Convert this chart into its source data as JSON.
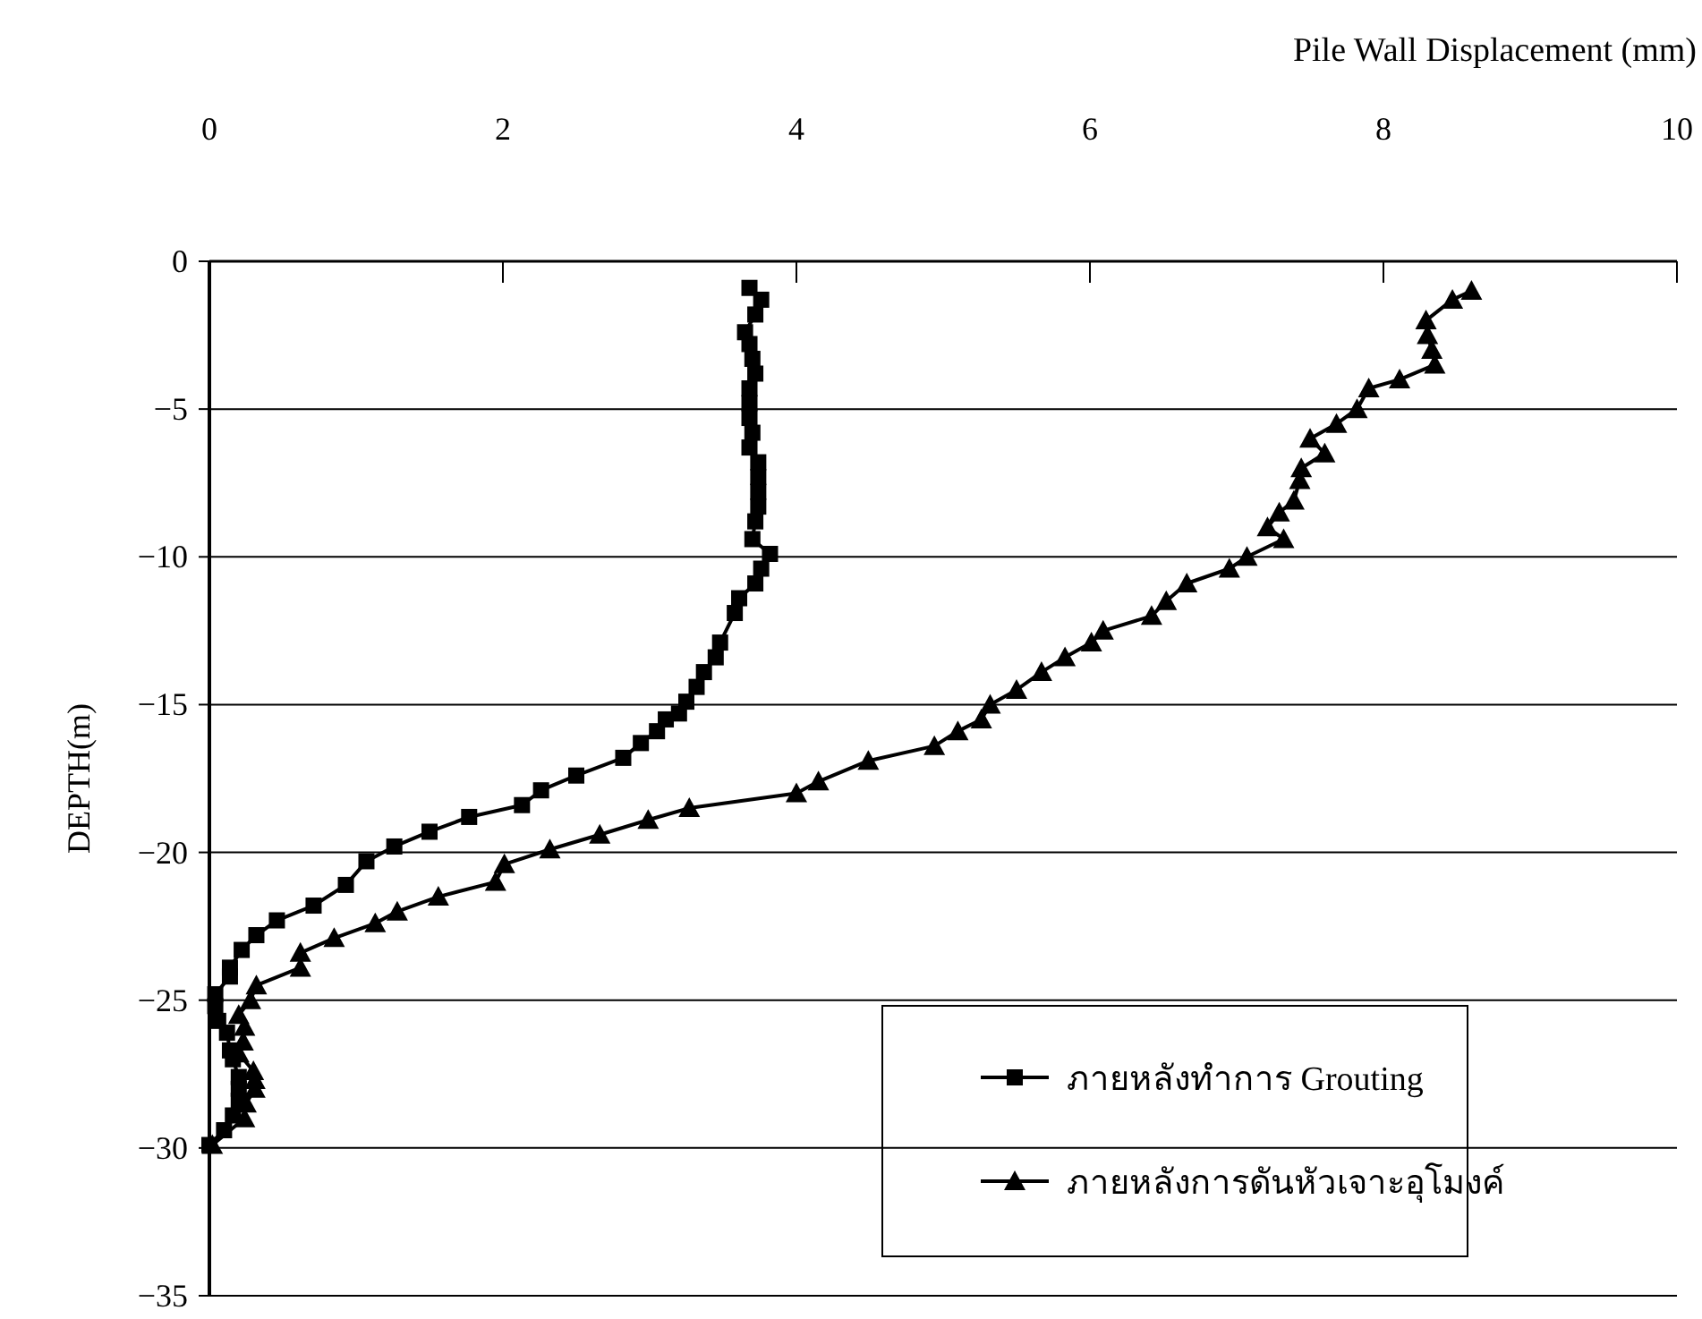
{
  "chart_data": {
    "type": "line",
    "xlabel": "Pile Wall Displacement (mm)",
    "ylabel": "DEPTH(m)",
    "xlim": [
      0,
      10
    ],
    "xticks": [
      0,
      2,
      4,
      6,
      8,
      10
    ],
    "ylim": [
      -35,
      0
    ],
    "yticks": [
      0,
      {
        "value": -5,
        "label": "−5"
      },
      {
        "value": -10,
        "label": "−10"
      },
      {
        "value": -15,
        "label": "−15"
      },
      {
        "value": -20,
        "label": "−20"
      },
      {
        "value": -25,
        "label": "−25"
      },
      {
        "value": -30,
        "label": "−30"
      },
      {
        "value": -35,
        "label": "−35"
      }
    ],
    "grid": "y",
    "legend": "bottom right",
    "series": [
      {
        "name": "ภายหลังทำการ Grouting",
        "color": "#000000",
        "marker": "square",
        "x": [
          3.68,
          3.76,
          3.72,
          3.65,
          3.68,
          3.7,
          3.72,
          3.68,
          3.68,
          3.68,
          3.7,
          3.68,
          3.74,
          3.74,
          3.74,
          3.74,
          3.72,
          3.7,
          3.82,
          3.76,
          3.72,
          3.61,
          3.58,
          3.48,
          3.45,
          3.37,
          3.32,
          3.25,
          3.2,
          3.11,
          3.05,
          2.94,
          2.82,
          2.5,
          2.26,
          2.13,
          1.77,
          1.5,
          1.26,
          1.07,
          0.93,
          0.71,
          0.46,
          0.32,
          0.22,
          0.14,
          0.14,
          0.04,
          0.04,
          0.06,
          0.12,
          0.14,
          0.16,
          0.2,
          0.2,
          0.2,
          0.16,
          0.1,
          0.0
        ],
        "values": [
          -0.9,
          -1.3,
          -1.8,
          -2.4,
          -2.8,
          -3.3,
          -3.8,
          -4.3,
          -4.8,
          -5.3,
          -5.8,
          -6.3,
          -6.8,
          -7.3,
          -7.8,
          -8.3,
          -8.8,
          -9.4,
          -9.9,
          -10.4,
          -10.9,
          -11.4,
          -11.9,
          -12.9,
          -13.4,
          -13.9,
          -14.4,
          -14.9,
          -15.3,
          -15.5,
          -15.9,
          -16.3,
          -16.8,
          -17.4,
          -17.9,
          -18.4,
          -18.8,
          -19.3,
          -19.8,
          -20.3,
          -21.1,
          -21.8,
          -22.3,
          -22.8,
          -23.3,
          -23.9,
          -24.2,
          -24.8,
          -25.2,
          -25.7,
          -26.1,
          -26.7,
          -27.0,
          -27.6,
          -28.0,
          -28.4,
          -28.9,
          -29.4,
          -29.9
        ]
      },
      {
        "name": "ภายหลังการดันหัวเจาะอุโมงค์",
        "color": "#000000",
        "marker": "triangle",
        "x": [
          8.6,
          8.47,
          8.29,
          8.3,
          8.33,
          8.35,
          8.11,
          7.9,
          7.82,
          7.68,
          7.5,
          7.6,
          7.44,
          7.43,
          7.39,
          7.29,
          7.21,
          7.32,
          7.07,
          6.95,
          6.66,
          6.52,
          6.42,
          6.09,
          6.01,
          5.83,
          5.67,
          5.5,
          5.32,
          5.26,
          5.1,
          4.94,
          4.49,
          4.15,
          4.0,
          3.27,
          2.99,
          2.66,
          2.32,
          2.01,
          1.95,
          1.56,
          1.28,
          1.13,
          0.85,
          0.62,
          0.62,
          0.32,
          0.28,
          0.2,
          0.24,
          0.23,
          0.2,
          0.3,
          0.31,
          0.31,
          0.25,
          0.24,
          0.02
        ],
        "values": [
          -1.0,
          -1.3,
          -2.0,
          -2.5,
          -3.0,
          -3.5,
          -4.0,
          -4.3,
          -5.0,
          -5.5,
          -6.0,
          -6.5,
          -7.0,
          -7.4,
          -8.1,
          -8.5,
          -9.0,
          -9.4,
          -10.0,
          -10.4,
          -10.9,
          -11.5,
          -12.0,
          -12.5,
          -12.9,
          -13.4,
          -13.9,
          -14.5,
          -15.0,
          -15.5,
          -15.9,
          -16.4,
          -16.9,
          -17.6,
          -18.0,
          -18.5,
          -18.9,
          -19.4,
          -19.9,
          -20.4,
          -21.0,
          -21.5,
          -22.0,
          -22.4,
          -22.9,
          -23.4,
          -23.9,
          -24.5,
          -25.0,
          -25.5,
          -25.9,
          -26.4,
          -26.8,
          -27.4,
          -27.7,
          -28.0,
          -28.5,
          -29.0,
          -29.9
        ]
      }
    ]
  }
}
